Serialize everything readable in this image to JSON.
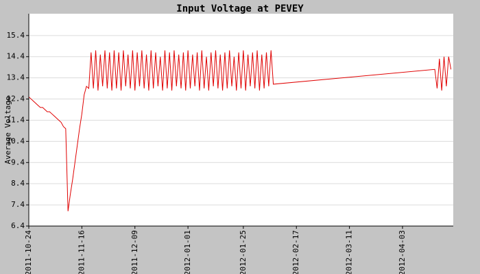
{
  "chart_data": {
    "type": "line",
    "title": "Input Voltage at PEVEY",
    "y_label": "Average Voltage",
    "color": "#e00000",
    "grid": true,
    "xlim": [
      "2011-10-24",
      "2012-04-25"
    ],
    "xticks": [
      "2011-10-24",
      "2011-11-16",
      "2011-12-09",
      "2012-01-01",
      "2012-01-25",
      "2012-02-17",
      "2012-03-11",
      "2012-04-03"
    ],
    "ylim": [
      6.4,
      16.43
    ],
    "yticks": [
      6.4,
      7.4,
      8.4,
      9.4,
      10.4,
      11.4,
      12.4,
      13.4,
      14.4,
      15.4
    ],
    "x": [
      "2011-10-24",
      "2011-10-25",
      "2011-10-26",
      "2011-10-27",
      "2011-10-28",
      "2011-10-29",
      "2011-10-30",
      "2011-10-31",
      "2011-11-01",
      "2011-11-02",
      "2011-11-03",
      "2011-11-04",
      "2011-11-05",
      "2011-11-06",
      "2011-11-07",
      "2011-11-08",
      "2011-11-09",
      "2011-11-10",
      "2011-11-11",
      "2011-11-12",
      "2011-11-13",
      "2011-11-14",
      "2011-11-15",
      "2011-11-16",
      "2011-11-17",
      "2011-11-18",
      "2011-11-19",
      "2011-11-20",
      "2011-11-21",
      "2011-11-22",
      "2011-11-23",
      "2011-11-24",
      "2011-11-25",
      "2011-11-26",
      "2011-11-27",
      "2011-11-28",
      "2011-11-29",
      "2011-11-30",
      "2011-12-01",
      "2011-12-02",
      "2011-12-03",
      "2011-12-04",
      "2011-12-05",
      "2011-12-06",
      "2011-12-07",
      "2011-12-08",
      "2011-12-09",
      "2011-12-10",
      "2011-12-11",
      "2011-12-12",
      "2011-12-13",
      "2011-12-14",
      "2011-12-15",
      "2011-12-16",
      "2011-12-17",
      "2011-12-18",
      "2011-12-19",
      "2011-12-20",
      "2011-12-21",
      "2011-12-22",
      "2011-12-23",
      "2011-12-24",
      "2011-12-25",
      "2011-12-26",
      "2011-12-27",
      "2011-12-28",
      "2011-12-29",
      "2011-12-30",
      "2011-12-31",
      "2012-01-01",
      "2012-01-02",
      "2012-01-03",
      "2012-01-04",
      "2012-01-05",
      "2012-01-06",
      "2012-01-07",
      "2012-01-08",
      "2012-01-09",
      "2012-01-10",
      "2012-01-11",
      "2012-01-12",
      "2012-01-13",
      "2012-01-14",
      "2012-01-15",
      "2012-01-16",
      "2012-01-17",
      "2012-01-18",
      "2012-01-19",
      "2012-01-20",
      "2012-01-21",
      "2012-01-22",
      "2012-01-23",
      "2012-01-24",
      "2012-01-25",
      "2012-01-26",
      "2012-01-27",
      "2012-01-28",
      "2012-01-29",
      "2012-01-30",
      "2012-01-31",
      "2012-02-01",
      "2012-02-02",
      "2012-02-03",
      "2012-02-04",
      "2012-02-05",
      "2012-02-06",
      "2012-02-07",
      "2012-04-17",
      "2012-04-18",
      "2012-04-19",
      "2012-04-20",
      "2012-04-21",
      "2012-04-22",
      "2012-04-23",
      "2012-04-24"
    ],
    "values": [
      12.5,
      12.4,
      12.3,
      12.2,
      12.1,
      12.0,
      12.0,
      11.9,
      11.8,
      11.8,
      11.7,
      11.6,
      11.5,
      11.4,
      11.3,
      11.1,
      11.0,
      7.1,
      7.9,
      8.6,
      9.4,
      10.2,
      11.0,
      11.7,
      12.6,
      13.0,
      12.9,
      14.6,
      12.9,
      14.7,
      12.8,
      14.5,
      13.0,
      14.7,
      12.9,
      14.6,
      12.8,
      14.7,
      12.9,
      14.6,
      12.8,
      14.7,
      13.0,
      14.5,
      12.9,
      14.7,
      12.8,
      14.6,
      13.0,
      14.7,
      12.9,
      14.5,
      12.8,
      14.7,
      12.9,
      14.6,
      13.0,
      14.4,
      12.8,
      14.7,
      12.9,
      14.6,
      12.8,
      14.7,
      13.0,
      14.5,
      12.9,
      14.6,
      12.8,
      14.7,
      12.9,
      14.5,
      13.0,
      14.6,
      12.8,
      14.7,
      12.9,
      14.4,
      12.8,
      14.6,
      13.0,
      14.7,
      12.9,
      14.5,
      12.8,
      14.6,
      12.9,
      14.7,
      13.0,
      14.4,
      12.8,
      14.6,
      12.9,
      14.7,
      12.8,
      14.5,
      13.0,
      14.6,
      12.9,
      14.7,
      12.8,
      14.5,
      12.9,
      14.6,
      13.0,
      14.7,
      13.1,
      13.8,
      12.9,
      14.3,
      12.8,
      14.4,
      13.0,
      14.4,
      13.8
    ]
  }
}
